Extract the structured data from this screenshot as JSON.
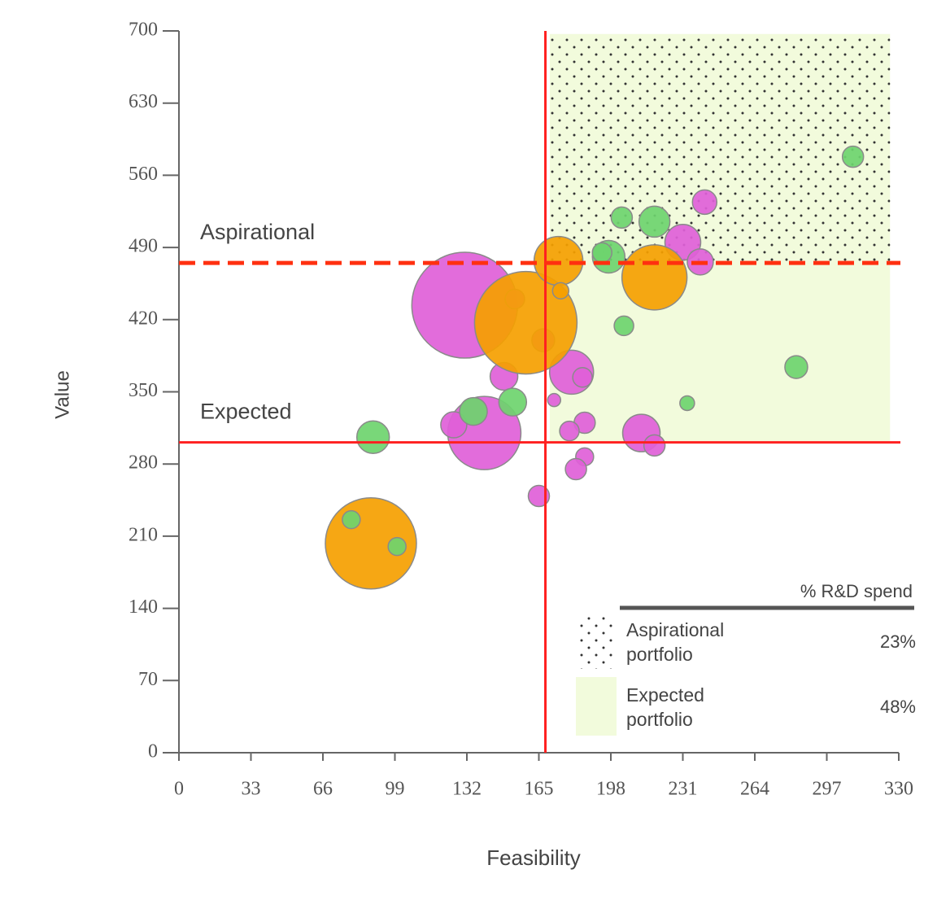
{
  "chart_data": {
    "type": "bubble",
    "xlabel": "Feasibility",
    "ylabel": "Value",
    "xlim": [
      0,
      330
    ],
    "xticks": [
      0,
      33,
      66,
      99,
      132,
      165,
      198,
      231,
      264,
      297,
      330
    ],
    "ylim": [
      0,
      700
    ],
    "yticks": [
      0,
      70,
      140,
      210,
      280,
      350,
      420,
      490,
      560,
      630,
      700
    ],
    "grid": false,
    "reference_lines": [
      {
        "axis": "x",
        "value": 168,
        "color": "#ff2020",
        "dashed": false
      },
      {
        "axis": "y",
        "value": 301,
        "color": "#ff2020",
        "dashed": false,
        "label": "Expected"
      },
      {
        "axis": "y",
        "value": 475,
        "color": "#ff3010",
        "dashed": true,
        "label": "Aspirational"
      }
    ],
    "regions": [
      {
        "xrange": [
          170,
          326
        ],
        "yrange": [
          301,
          697
        ],
        "color": "#f2fbdc",
        "dotted": false
      },
      {
        "xrange": [
          170,
          326
        ],
        "yrange": [
          475,
          697
        ],
        "color": "#f2fbdc",
        "dotted": true
      }
    ],
    "series": [
      {
        "color": "#e060d8",
        "x": [
          131,
          140,
          154,
          149,
          126,
          167,
          172,
          180,
          185,
          186,
          179,
          186,
          182,
          165,
          212,
          218,
          231,
          239,
          241
        ],
        "y": [
          434,
          310,
          440,
          365,
          318,
          400,
          342,
          369,
          364,
          320,
          312,
          287,
          275,
          249,
          310,
          298,
          495,
          476,
          534
        ],
        "sizes": [
          65,
          45,
          12,
          17,
          16,
          14,
          8,
          27,
          12,
          13,
          12,
          11,
          13,
          13,
          23,
          13,
          22,
          16,
          15
        ]
      },
      {
        "color": "#f5a000",
        "x": [
          159,
          88,
          174,
          218,
          175
        ],
        "y": [
          417,
          203,
          477,
          461,
          448
        ],
        "sizes": [
          63,
          56,
          30,
          40,
          10
        ]
      },
      {
        "color": "#6ed46e",
        "x": [
          89,
          135,
          153,
          79,
          100,
          197,
          194,
          203,
          218,
          204,
          283,
          233,
          309
        ],
        "y": [
          306,
          331,
          340,
          226,
          200,
          481,
          485,
          519,
          515,
          414,
          374,
          339,
          578
        ],
        "sizes": [
          20,
          17,
          17,
          11,
          11,
          20,
          12,
          13,
          19,
          12,
          14,
          9,
          13
        ]
      }
    ],
    "legend": {
      "title": "% R&D spend",
      "items": [
        {
          "label": [
            "Aspirational",
            "portfolio"
          ],
          "value": 23,
          "value_label": "23%"
        },
        {
          "label": [
            "Expected",
            "portfolio"
          ],
          "value": 48,
          "value_label": "48%"
        }
      ]
    }
  }
}
